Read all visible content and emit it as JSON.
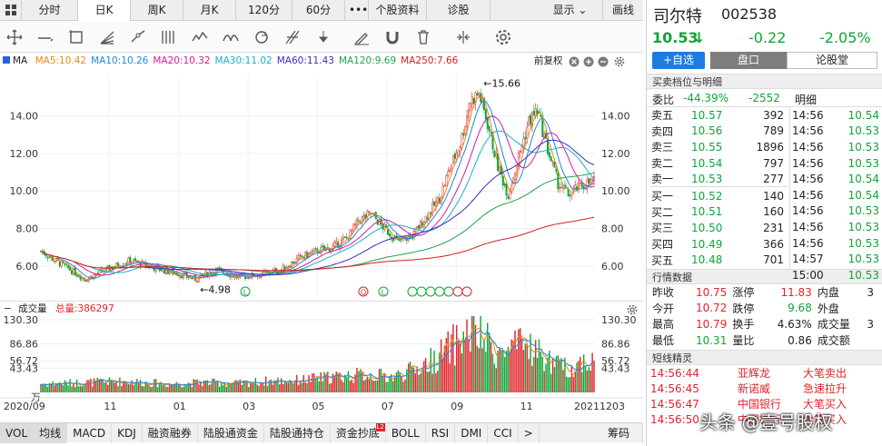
{
  "tabs": [
    {
      "label": "分时",
      "active": false
    },
    {
      "label": "日K",
      "active": true
    },
    {
      "label": "周K",
      "active": false
    },
    {
      "label": "月K",
      "active": false
    },
    {
      "label": "120分",
      "active": false
    },
    {
      "label": "60分",
      "active": false
    },
    {
      "label": "•••",
      "active": false
    },
    {
      "label": "个股资料",
      "active": false
    },
    {
      "label": "诊股",
      "active": false
    },
    {
      "label": "显示 ⌄",
      "active": false
    },
    {
      "label": "画线",
      "active": false
    }
  ],
  "ma_legend": {
    "prefix": "MA",
    "items": [
      {
        "label": "MA5:10.42",
        "color": "#e88c1a"
      },
      {
        "label": "MA10:10.26",
        "color": "#1e88e5"
      },
      {
        "label": "MA20:10.32",
        "color": "#d81b9a"
      },
      {
        "label": "MA30:11.02",
        "color": "#16b3c4"
      },
      {
        "label": "MA60:11.43",
        "color": "#3b2fc0"
      },
      {
        "label": "MA120:9.69",
        "color": "#21a24a"
      },
      {
        "label": "MA250:7.66",
        "color": "#d32020"
      }
    ],
    "adjust": "前复权"
  },
  "price_axis": {
    "ticks": [
      "14.00",
      "12.00",
      "10.00",
      "8.00",
      "6.00"
    ],
    "max_label": "←15.66",
    "min_label": "←4.98"
  },
  "vol_legend": {
    "name": "成交量",
    "total": "总量:386297"
  },
  "vol_axis": {
    "ticks": [
      "130.30",
      "86.86",
      "56.72",
      "43.43"
    ],
    "unit": "万"
  },
  "date_axis": [
    "2020/09",
    "11",
    "01",
    "03",
    "05",
    "07",
    "09",
    "11",
    "20211203"
  ],
  "indicators": [
    {
      "label": "VOL",
      "active": true
    },
    {
      "label": "均线",
      "active": true
    },
    {
      "label": "MACD",
      "active": false
    },
    {
      "label": "KDJ",
      "active": false
    },
    {
      "label": "融资融券",
      "active": false
    },
    {
      "label": "陆股通资金",
      "active": false
    },
    {
      "label": "陆股通持仓",
      "active": false
    },
    {
      "label": "资金抄底",
      "active": false,
      "badge": "L2"
    },
    {
      "label": "BOLL",
      "active": false
    },
    {
      "label": "RSI",
      "active": false
    },
    {
      "label": "DMI",
      "active": false
    },
    {
      "label": "CCI",
      "active": false
    },
    {
      "label": ">",
      "active": false
    },
    {
      "label": "筹码",
      "active": false
    }
  ],
  "stock": {
    "name": "司尔特",
    "code": "002538",
    "price": "10.53",
    "arrow": "↓",
    "change": "-0.22",
    "pct": "-2.05%"
  },
  "buttons": {
    "add": "+自选",
    "pankou": "盘口",
    "lungu": "论股堂"
  },
  "orderbook": {
    "title": "买卖档位与明细",
    "weibi_label": "委比",
    "weibi_pct": "-44.39%",
    "weibi_diff": "-2552",
    "detail_title": "明细",
    "asks": [
      {
        "label": "卖五",
        "price": "10.57",
        "vol": "392"
      },
      {
        "label": "卖四",
        "price": "10.56",
        "vol": "789"
      },
      {
        "label": "卖三",
        "price": "10.55",
        "vol": "1896"
      },
      {
        "label": "卖二",
        "price": "10.54",
        "vol": "797"
      },
      {
        "label": "卖一",
        "price": "10.53",
        "vol": "277"
      }
    ],
    "bids": [
      {
        "label": "买一",
        "price": "10.52",
        "vol": "140"
      },
      {
        "label": "买二",
        "price": "10.51",
        "vol": "160"
      },
      {
        "label": "买三",
        "price": "10.50",
        "vol": "231"
      },
      {
        "label": "买四",
        "price": "10.49",
        "vol": "366"
      },
      {
        "label": "买五",
        "price": "10.48",
        "vol": "701"
      }
    ],
    "details": [
      {
        "time": "14:56",
        "price": "10.54"
      },
      {
        "time": "14:56",
        "price": "10.53"
      },
      {
        "time": "14:56",
        "price": "10.53"
      },
      {
        "time": "14:56",
        "price": "10.53"
      },
      {
        "time": "14:56",
        "price": "10.54"
      },
      {
        "time": "14:56",
        "price": "10.54"
      },
      {
        "time": "14:56",
        "price": "10.53"
      },
      {
        "time": "14:56",
        "price": "10.53"
      },
      {
        "time": "14:56",
        "price": "10.53"
      },
      {
        "time": "14:57",
        "price": "10.53"
      },
      {
        "time": "15:00",
        "price": "10.53"
      }
    ]
  },
  "quote": {
    "title": "行情数据",
    "rows": [
      [
        "昨收",
        "10.75",
        "涨停",
        "11.83",
        "内盘",
        "3"
      ],
      [
        "今开",
        "10.72",
        "跌停",
        "9.68",
        "外盘",
        ""
      ],
      [
        "最高",
        "10.79",
        "换手",
        "4.63%",
        "成交量",
        "3"
      ],
      [
        "最低",
        "10.31",
        "量比",
        "0.86",
        "成交额",
        ""
      ]
    ]
  },
  "news": {
    "title": "短线精灵",
    "rows": [
      {
        "time": "14:56:44",
        "name": "亚辉龙",
        "event": "大笔卖出"
      },
      {
        "time": "14:56:45",
        "name": "新诺威",
        "event": "急速拉升"
      },
      {
        "time": "14:56:47",
        "name": "中国银行",
        "event": "大笔买入"
      },
      {
        "time": "14:56:50",
        "name": "中国银行",
        "event": "大笔买入"
      }
    ]
  },
  "watermark": "头条 @壹号股权",
  "colors": {
    "up": "#e0242b",
    "down": "#0fa636",
    "accent": "#1e7be0"
  },
  "chart_data": {
    "type": "candlestick",
    "ylim": [
      4.5,
      16.2
    ],
    "vol_max": 130.3,
    "close_anchors": [
      [
        0,
        6.8
      ],
      [
        12,
        6.1
      ],
      [
        26,
        5.3
      ],
      [
        40,
        5.9
      ],
      [
        52,
        6.3
      ],
      [
        62,
        6.0
      ],
      [
        80,
        5.6
      ],
      [
        90,
        5.3
      ],
      [
        102,
        5.8
      ],
      [
        115,
        5.4
      ],
      [
        130,
        5.6
      ],
      [
        140,
        5.8
      ],
      [
        150,
        6.4
      ],
      [
        160,
        6.8
      ],
      [
        170,
        7.0
      ],
      [
        178,
        7.5
      ],
      [
        185,
        8.4
      ],
      [
        192,
        8.8
      ],
      [
        200,
        8.0
      ],
      [
        208,
        7.3
      ],
      [
        216,
        7.6
      ],
      [
        224,
        8.6
      ],
      [
        232,
        9.6
      ],
      [
        238,
        11.2
      ],
      [
        244,
        12.5
      ],
      [
        250,
        14.8
      ],
      [
        255,
        15.2
      ],
      [
        260,
        13.6
      ],
      [
        266,
        11.3
      ],
      [
        272,
        9.8
      ],
      [
        278,
        11.8
      ],
      [
        284,
        13.7
      ],
      [
        289,
        14.3
      ],
      [
        295,
        12.2
      ],
      [
        301,
        10.4
      ],
      [
        307,
        9.8
      ],
      [
        313,
        10.2
      ],
      [
        318,
        10.4
      ],
      [
        322,
        10.53
      ]
    ],
    "vol_anchors": [
      [
        0,
        15
      ],
      [
        25,
        18
      ],
      [
        50,
        20
      ],
      [
        75,
        15
      ],
      [
        95,
        18
      ],
      [
        115,
        16
      ],
      [
        130,
        20
      ],
      [
        150,
        22
      ],
      [
        170,
        28
      ],
      [
        190,
        32
      ],
      [
        205,
        28
      ],
      [
        218,
        42
      ],
      [
        228,
        58
      ],
      [
        236,
        75
      ],
      [
        244,
        95
      ],
      [
        252,
        110
      ],
      [
        260,
        88
      ],
      [
        268,
        68
      ],
      [
        276,
        78
      ],
      [
        284,
        86
      ],
      [
        292,
        64
      ],
      [
        300,
        48
      ],
      [
        310,
        42
      ],
      [
        316,
        60
      ],
      [
        322,
        52
      ]
    ]
  }
}
